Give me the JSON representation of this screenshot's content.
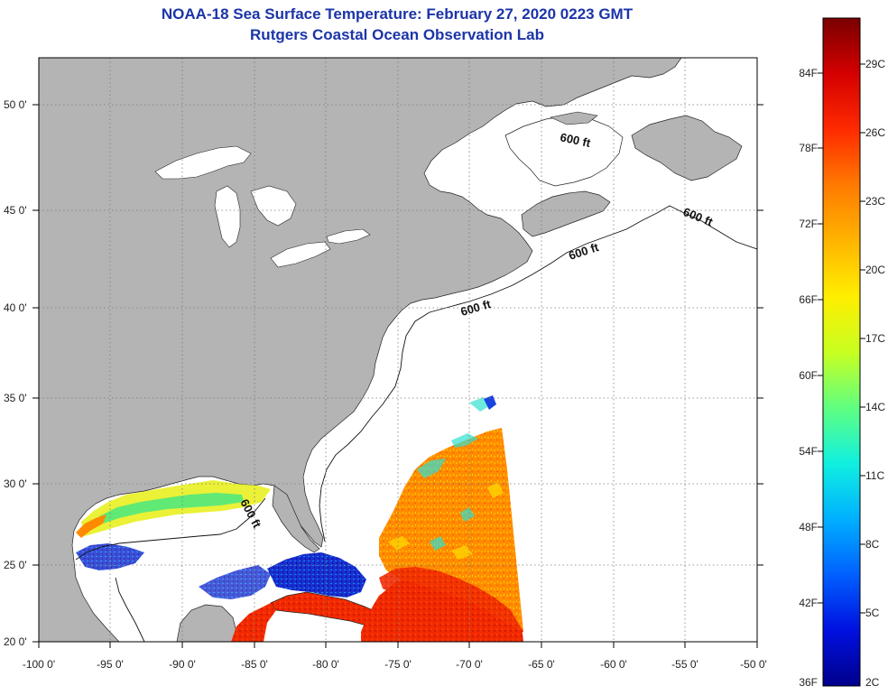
{
  "header": {
    "title_line1": "NOAA-18 Sea Surface Temperature:  February 27, 2020 0223 GMT",
    "title_line2": "Rutgers Coastal Ocean Observation Lab"
  },
  "map": {
    "lon_labels": [
      "-100 0'",
      "-95 0'",
      "-90 0'",
      "-85 0'",
      "-80 0'",
      "-75 0'",
      "-70 0'",
      "-65 0'",
      "-60 0'",
      "-55 0'",
      "-50 0'"
    ],
    "lat_labels": [
      "50 0'",
      "45 0'",
      "40 0'",
      "35 0'",
      "30 0'",
      "25 0'",
      "20 0'"
    ],
    "depth_contour_labels": [
      "600 ft",
      "600 ft",
      "600 ft",
      "600 ft",
      "600 ft"
    ],
    "colors": {
      "land": "#b4b4b4",
      "ocean_no_data": "#ffffff",
      "grid": "#7a7a7a"
    }
  },
  "colorbar": {
    "fahrenheit_labels": [
      "84F",
      "78F",
      "72F",
      "66F",
      "60F",
      "54F",
      "48F",
      "42F",
      "36F"
    ],
    "celsius_labels": [
      "29C",
      "26C",
      "23C",
      "20C",
      "17C",
      "14C",
      "11C",
      "8C",
      "5C",
      "2C"
    ],
    "gradient_colors": [
      "#7a0000",
      "#d40000",
      "#ff2a00",
      "#ff7a00",
      "#ffb400",
      "#ffee00",
      "#c8ff20",
      "#60ff80",
      "#10f0e0",
      "#00b0ff",
      "#0060ff",
      "#0010e0",
      "#00008a"
    ]
  }
}
